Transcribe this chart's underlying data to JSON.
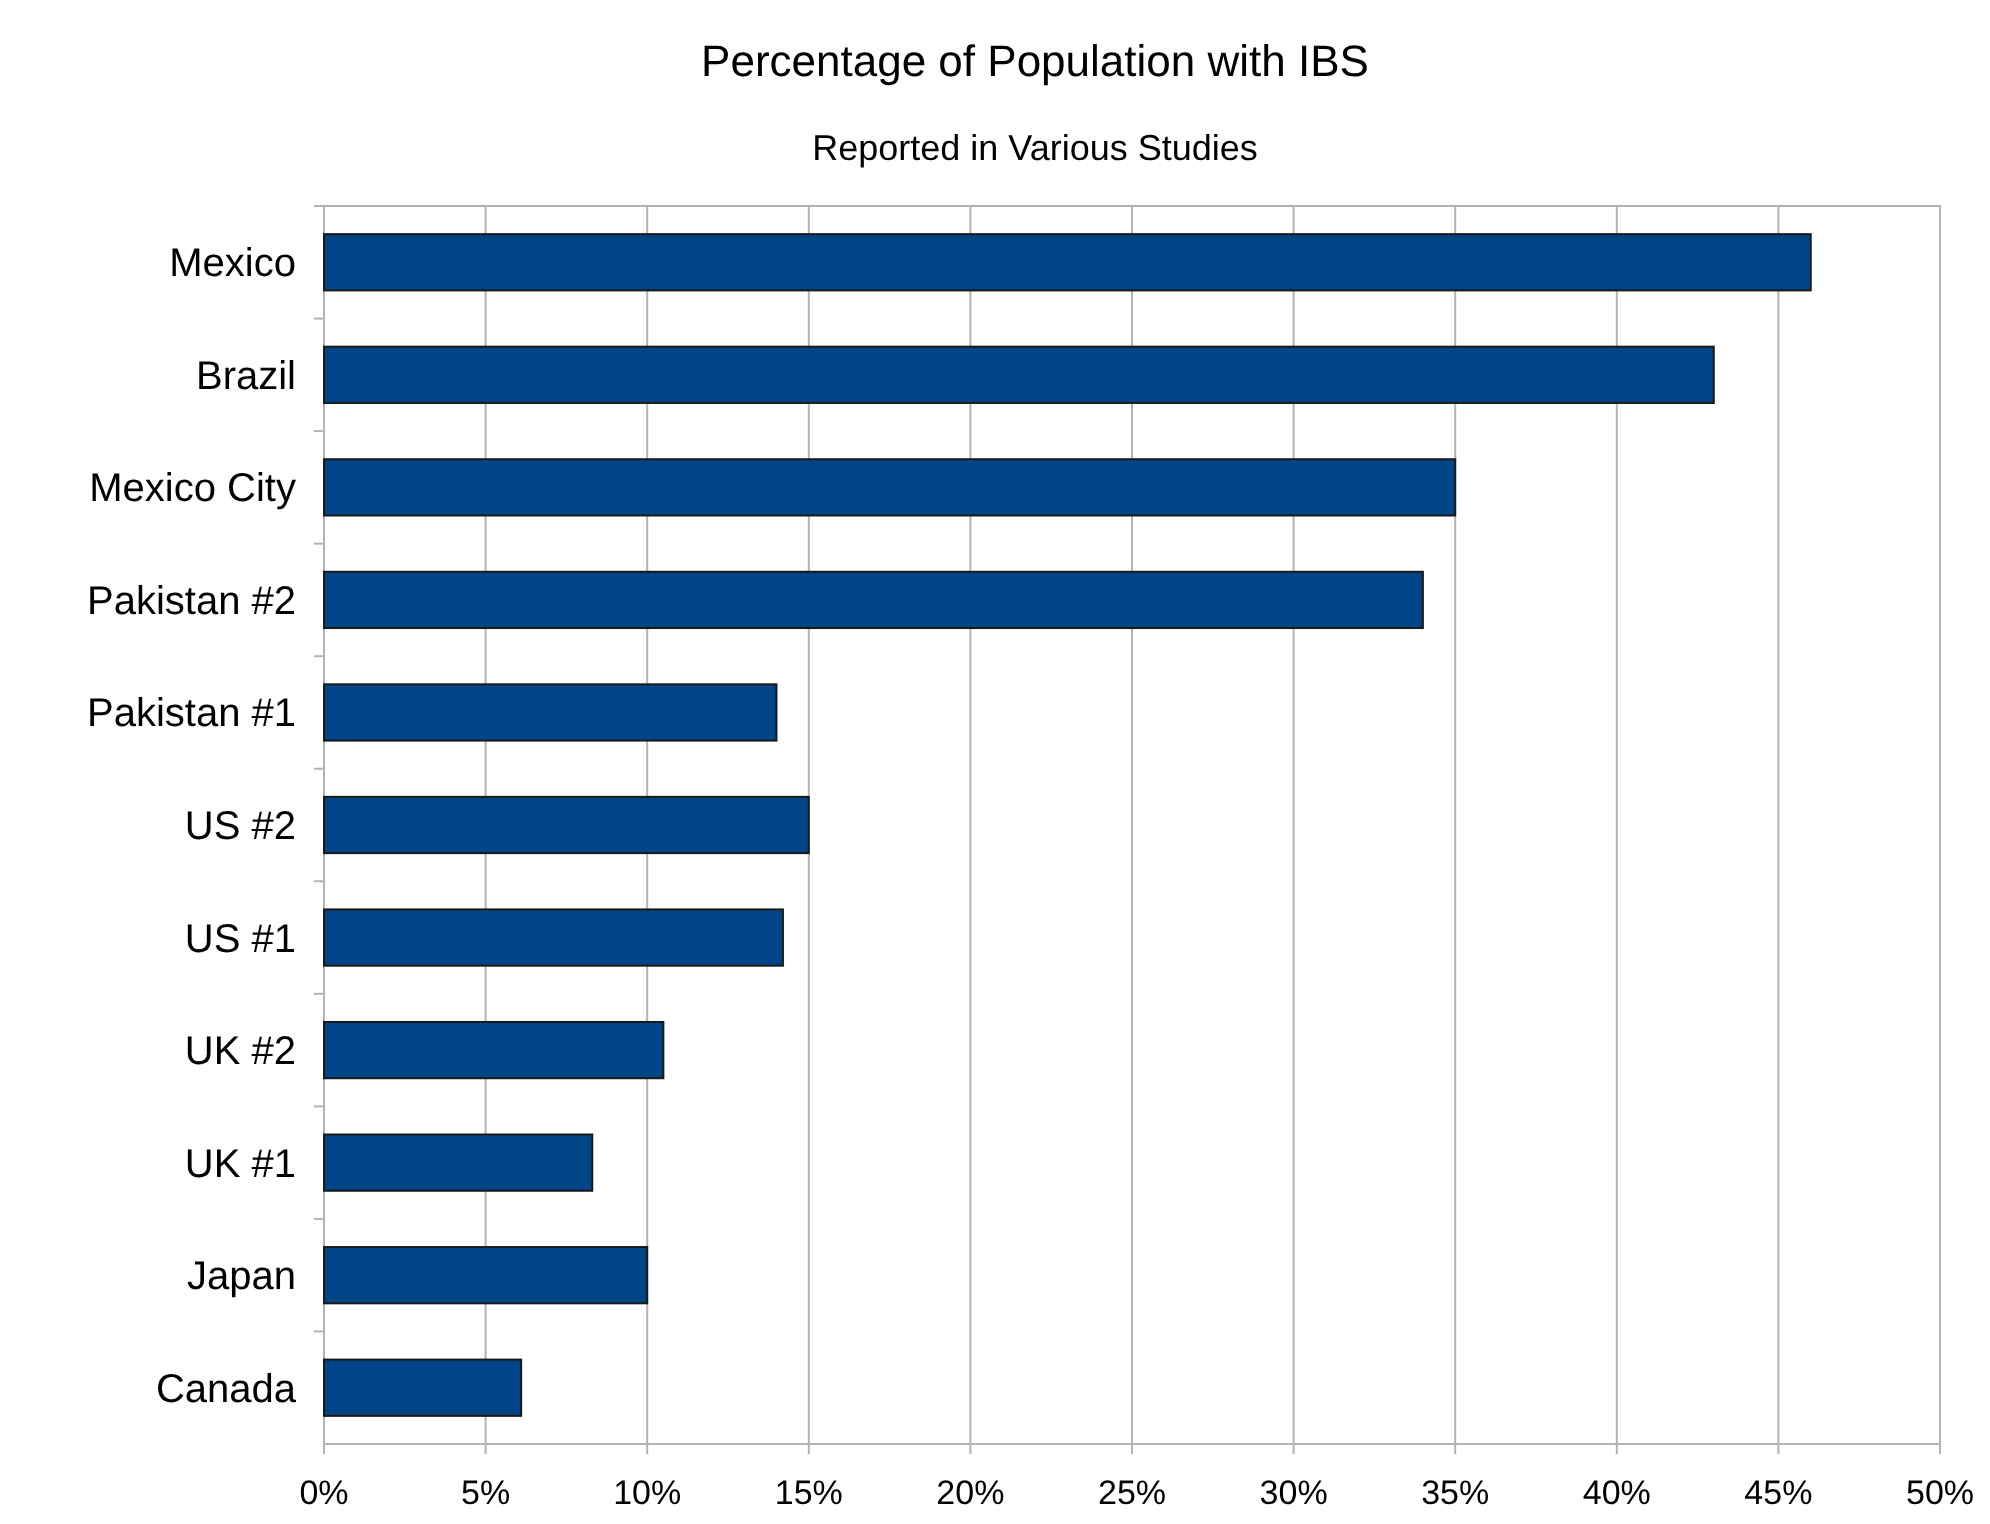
{
  "chart_data": {
    "type": "bar",
    "orientation": "horizontal",
    "title": "Percentage of Population with IBS",
    "subtitle": "Reported in Various Studies",
    "categories": [
      "Mexico",
      "Brazil",
      "Mexico City",
      "Pakistan #2",
      "Pakistan #1",
      "US #2",
      "US #1",
      "UK #2",
      "UK #1",
      "Japan",
      "Canada"
    ],
    "values": [
      46,
      43,
      35,
      34,
      14,
      15,
      14.2,
      10.5,
      8.3,
      10,
      6.1
    ],
    "color": "#004586",
    "xlim": [
      0,
      50
    ],
    "xticks": [
      {
        "value": 0,
        "label": "0%"
      },
      {
        "value": 5,
        "label": "5%"
      },
      {
        "value": 10,
        "label": "10%"
      },
      {
        "value": 15,
        "label": "15%"
      },
      {
        "value": 20,
        "label": "20%"
      },
      {
        "value": 25,
        "label": "25%"
      },
      {
        "value": 30,
        "label": "30%"
      },
      {
        "value": 35,
        "label": "35%"
      },
      {
        "value": 40,
        "label": "40%"
      },
      {
        "value": 45,
        "label": "45%"
      },
      {
        "value": 50,
        "label": "50%"
      }
    ],
    "grid": "x"
  }
}
